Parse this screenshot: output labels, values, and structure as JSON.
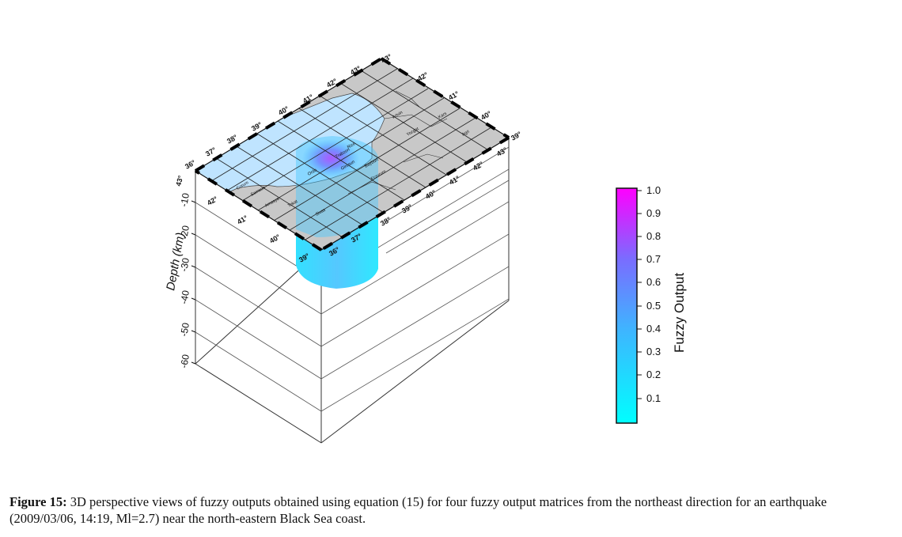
{
  "figure": {
    "depth_axis": {
      "title": "Depth (km)",
      "ticks": [
        "-10",
        "-20",
        "-30",
        "-40",
        "-50",
        "-60"
      ]
    },
    "top_edge_labels": [
      "36°",
      "37°",
      "38°",
      "39°",
      "40°",
      "41°",
      "42°",
      "43°",
      "43°"
    ],
    "right_edge_labels": [
      "42°",
      "41°",
      "40°",
      "39°"
    ],
    "left_edge_labels": [
      "43°",
      "42°",
      "41°",
      "40°",
      "39°"
    ],
    "bottom_edge_labels": [
      "36°",
      "37°",
      "38°",
      "39°",
      "40°",
      "41°",
      "42°",
      "43°"
    ],
    "city_labels": [
      "Artvin",
      "Trabzon",
      "Rize",
      "Giresun",
      "Samsun",
      "Ordu",
      "Tokat",
      "Sivas",
      "Erzurum",
      "Amasya",
      "Bayburt",
      "Corum",
      "Kars",
      "Agri",
      "Yozgat"
    ],
    "colorbar": {
      "title": "Fuzzy Output",
      "tick_labels": [
        "1.0",
        "0.9",
        "0.8",
        "0.7",
        "0.6",
        "0.5",
        "0.4",
        "0.3",
        "0.2",
        "0.1"
      ],
      "color_min": "#00ffff",
      "color_mid": "#4fa3ff",
      "color_max": "#ff00ff"
    },
    "colors": {
      "sea": "#bfe4ff",
      "land": "#c8c8c8",
      "column": "#3ee6ff",
      "hotspot": "#e800ff"
    }
  },
  "caption": {
    "label": "Figure 15:",
    "text": " 3D perspective views of fuzzy outputs obtained using equation (15) for four fuzzy output matrices from the northeast direction for an earthquake (2009/03/06, 14:19, Ml=2.7) near the north-eastern Black Sea coast."
  }
}
